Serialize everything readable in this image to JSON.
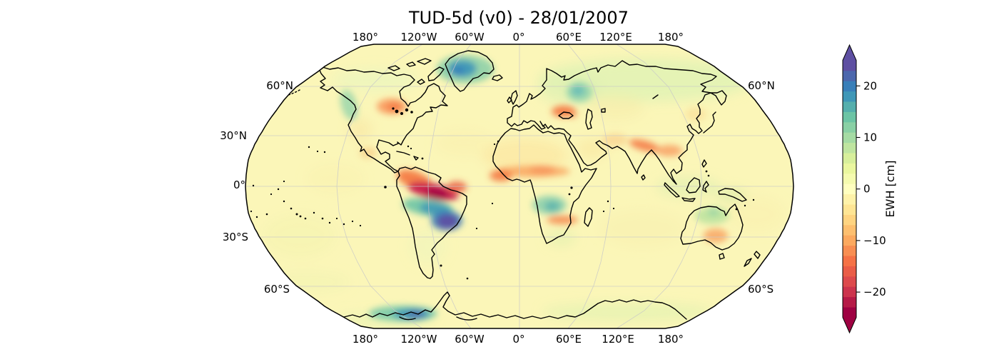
{
  "title": "TUD-5d (v0) - 28/01/2007",
  "map": {
    "lon_labels": [
      "180°",
      "120°W",
      "60°W",
      "0°",
      "60°E",
      "120°E",
      "180°"
    ],
    "lat_labels_left": [
      "60°N",
      "30°N",
      "0°",
      "30°S",
      "60°S"
    ],
    "lat_labels_right": [
      "60°N",
      "60°S"
    ]
  },
  "colorbar": {
    "label": "EWH [cm]",
    "ticks": [
      "20",
      "10",
      "0",
      "−10",
      "−20"
    ],
    "tick_values": [
      20,
      10,
      0,
      -10,
      -20
    ],
    "vmin": -25,
    "vmax": 25,
    "palette_name": "Spectral (discrete, 25 steps, bottom to top)",
    "palette": [
      "#9E0142",
      "#B51A47",
      "#CC344D",
      "#DD4A4C",
      "#EA5D47",
      "#F57246",
      "#F88E52",
      "#FCA95F",
      "#FDBF6F",
      "#FED481",
      "#FEE594",
      "#FEF2A9",
      "#FFFFBF",
      "#F5FBAF",
      "#EAF79F",
      "#D7EF9B",
      "#BFE5A0",
      "#A5DBA4",
      "#89D0A5",
      "#6CC4A5",
      "#55AFAD",
      "#3F97B7",
      "#397FB9",
      "#4C67AD",
      "#5E4FA2"
    ]
  },
  "chart_data": {
    "type": "heatmap",
    "title": "TUD-5d (v0) - 28/01/2007",
    "product": "TUD-5d (v0)",
    "date": "28/01/2007",
    "variable": "Equivalent Water Height",
    "units": "cm",
    "projection": "Robinson-like pseudocylindrical world map, central meridian 0°",
    "grid": true,
    "lat_gridlines_deg": [
      60,
      30,
      0,
      -30,
      -60
    ],
    "lon_gridlines_deg": [
      -180,
      -120,
      -60,
      0,
      60,
      120,
      180
    ],
    "colorbar_range": [
      -25,
      25
    ],
    "colorbar_ticks": [
      -20,
      -10,
      0,
      10,
      20
    ],
    "colorbar_side": "right",
    "colorbar_extend": "both",
    "background_field_cm": -1,
    "regions": [
      {
        "region": "Baffin Island / West Greenland",
        "ewh_cm": 18
      },
      {
        "region": "Alaska Pacific coast",
        "ewh_cm": 10
      },
      {
        "region": "Central United States (Great Plains)",
        "ewh_cm": -8
      },
      {
        "region": "Northern Amazon / Guiana Shield",
        "ewh_cm": -24
      },
      {
        "region": "Central Brazil band",
        "ewh_cm": 14
      },
      {
        "region": "Southern Brazil / Paraguay (La Plata)",
        "ewh_cm": 24
      },
      {
        "region": "Sahel belt",
        "ewh_cm": -8
      },
      {
        "region": "West Africa (Guinea)",
        "ewh_cm": -12
      },
      {
        "region": "Congo / Zambia",
        "ewh_cm": 10
      },
      {
        "region": "Southern Africa (Zambezi belt)",
        "ewh_cm": -9
      },
      {
        "region": "Northwestern Russia",
        "ewh_cm": 10
      },
      {
        "region": "Black Sea / Caucasus",
        "ewh_cm": -11
      },
      {
        "region": "Siberia (broad)",
        "ewh_cm": 4
      },
      {
        "region": "Himalaya / Tibet margin",
        "ewh_cm": -11
      },
      {
        "region": "Northern Australia",
        "ewh_cm": 6
      },
      {
        "region": "Eastern interior Australia",
        "ewh_cm": -6
      },
      {
        "region": "West Antarctica coast",
        "ewh_cm": 16
      }
    ]
  }
}
